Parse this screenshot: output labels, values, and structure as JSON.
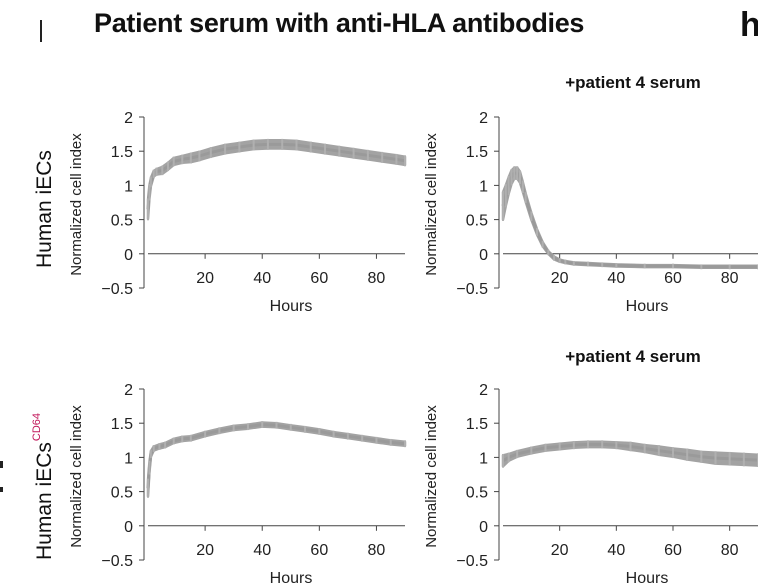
{
  "figure": {
    "title": "Patient serum with anti-HLA antibodies",
    "side_letter": "h",
    "row_labels": [
      {
        "main": "Human iECs",
        "sup": ""
      },
      {
        "main": "Human iECs",
        "sup": "CD64"
      }
    ]
  },
  "colors": {
    "trace": "#a3a3a3",
    "axis": "#444444",
    "sup_accent": "#c2185b"
  },
  "chart_data": [
    {
      "type": "line",
      "title": "",
      "xlabel": "Hours",
      "ylabel": "Normalized cell index",
      "xlim": [
        0,
        90
      ],
      "ylim": [
        -0.5,
        2
      ],
      "xticks": [
        20,
        40,
        60,
        80
      ],
      "yticks": [
        2,
        1.5,
        1,
        0.5,
        0,
        -0.5
      ],
      "ytick_labels": [
        "2",
        "1.5",
        "1",
        "0.5",
        "0",
        "−0.5"
      ],
      "grid": false,
      "series": [
        {
          "x": [
            0,
            0.5,
            1,
            2,
            3,
            5,
            7,
            9,
            12,
            15,
            18,
            22,
            27,
            32,
            37,
            42,
            47,
            52,
            57,
            62,
            67,
            72,
            77,
            82,
            87,
            90
          ],
          "y": [
            0.65,
            0.9,
            1.05,
            1.17,
            1.2,
            1.22,
            1.28,
            1.35,
            1.38,
            1.4,
            1.43,
            1.48,
            1.53,
            1.56,
            1.59,
            1.6,
            1.6,
            1.59,
            1.56,
            1.53,
            1.5,
            1.47,
            1.44,
            1.41,
            1.38,
            1.36
          ],
          "spread": [
            0.14,
            0.1,
            0.06,
            0.04,
            0.04,
            0.05,
            0.05,
            0.05,
            0.05,
            0.06,
            0.06,
            0.06,
            0.06,
            0.06,
            0.06,
            0.06,
            0.06,
            0.06,
            0.06,
            0.06,
            0.06,
            0.06,
            0.06,
            0.06,
            0.06,
            0.06
          ]
        }
      ]
    },
    {
      "type": "line",
      "title": "+patient 4 serum",
      "xlabel": "Hours",
      "ylabel": "Normalized cell index",
      "xlim": [
        0,
        90
      ],
      "ylim": [
        -0.5,
        2
      ],
      "xticks": [
        20,
        40,
        60,
        80
      ],
      "yticks": [
        2,
        1.5,
        1,
        0.5,
        0,
        -0.5
      ],
      "ytick_labels": [
        "2",
        "1.5",
        "1",
        "0.5",
        "0",
        "−0.5"
      ],
      "grid": false,
      "series": [
        {
          "x": [
            0,
            1,
            2,
            3,
            4,
            5,
            6,
            7,
            8,
            10,
            12,
            14,
            16,
            18,
            20,
            22,
            25,
            30,
            35,
            40,
            50,
            60,
            70,
            80,
            90
          ],
          "y": [
            0.7,
            0.85,
            1.0,
            1.12,
            1.18,
            1.18,
            1.12,
            0.98,
            0.82,
            0.55,
            0.32,
            0.14,
            0.02,
            -0.06,
            -0.1,
            -0.12,
            -0.14,
            -0.15,
            -0.16,
            -0.17,
            -0.18,
            -0.18,
            -0.19,
            -0.19,
            -0.19
          ],
          "spread": [
            0.2,
            0.15,
            0.12,
            0.1,
            0.08,
            0.08,
            0.08,
            0.07,
            0.06,
            0.05,
            0.04,
            0.03,
            0.02,
            0.02,
            0.015,
            0.015,
            0.015,
            0.015,
            0.015,
            0.015,
            0.015,
            0.015,
            0.015,
            0.015,
            0.015
          ]
        }
      ]
    },
    {
      "type": "line",
      "title": "",
      "xlabel": "Hours",
      "ylabel": "Normalized cell index",
      "xlim": [
        0,
        90
      ],
      "ylim": [
        -0.5,
        2
      ],
      "xticks": [
        20,
        40,
        60,
        80
      ],
      "yticks": [
        2,
        1.5,
        1,
        0.5,
        0,
        -0.5
      ],
      "ytick_labels": [
        "2",
        "1.5",
        "1",
        "0.5",
        "0",
        "−0.5"
      ],
      "grid": false,
      "series": [
        {
          "x": [
            0,
            0.5,
            1,
            2,
            4,
            6,
            9,
            12,
            15,
            20,
            25,
            30,
            35,
            40,
            45,
            50,
            55,
            60,
            65,
            70,
            75,
            80,
            85,
            90
          ],
          "y": [
            0.55,
            0.85,
            1.05,
            1.13,
            1.16,
            1.18,
            1.24,
            1.27,
            1.28,
            1.34,
            1.39,
            1.43,
            1.45,
            1.48,
            1.47,
            1.44,
            1.41,
            1.38,
            1.34,
            1.31,
            1.28,
            1.25,
            1.22,
            1.2
          ],
          "spread": [
            0.12,
            0.08,
            0.04,
            0.03,
            0.03,
            0.03,
            0.03,
            0.03,
            0.03,
            0.03,
            0.03,
            0.03,
            0.03,
            0.03,
            0.03,
            0.03,
            0.03,
            0.03,
            0.03,
            0.03,
            0.03,
            0.03,
            0.03,
            0.03
          ]
        }
      ]
    },
    {
      "type": "line",
      "title": "+patient 4 serum",
      "xlabel": "Hours",
      "ylabel": "Normalized cell index",
      "xlim": [
        0,
        90
      ],
      "ylim": [
        -0.5,
        2
      ],
      "xticks": [
        20,
        40,
        60,
        80
      ],
      "yticks": [
        2,
        1.5,
        1,
        0.5,
        0,
        -0.5
      ],
      "ytick_labels": [
        "2",
        "1.5",
        "1",
        "0.5",
        "0",
        "−0.5"
      ],
      "grid": false,
      "series": [
        {
          "x": [
            0,
            2,
            5,
            10,
            15,
            20,
            25,
            30,
            35,
            40,
            45,
            50,
            55,
            60,
            65,
            70,
            75,
            80,
            85,
            90
          ],
          "y": [
            0.95,
            1.0,
            1.05,
            1.1,
            1.14,
            1.16,
            1.18,
            1.19,
            1.19,
            1.18,
            1.16,
            1.13,
            1.1,
            1.07,
            1.04,
            1.01,
            0.99,
            0.98,
            0.97,
            0.96
          ],
          "spread": [
            0.08,
            0.05,
            0.04,
            0.04,
            0.04,
            0.04,
            0.04,
            0.04,
            0.04,
            0.04,
            0.05,
            0.05,
            0.06,
            0.06,
            0.07,
            0.07,
            0.08,
            0.08,
            0.08,
            0.08
          ]
        }
      ]
    }
  ]
}
